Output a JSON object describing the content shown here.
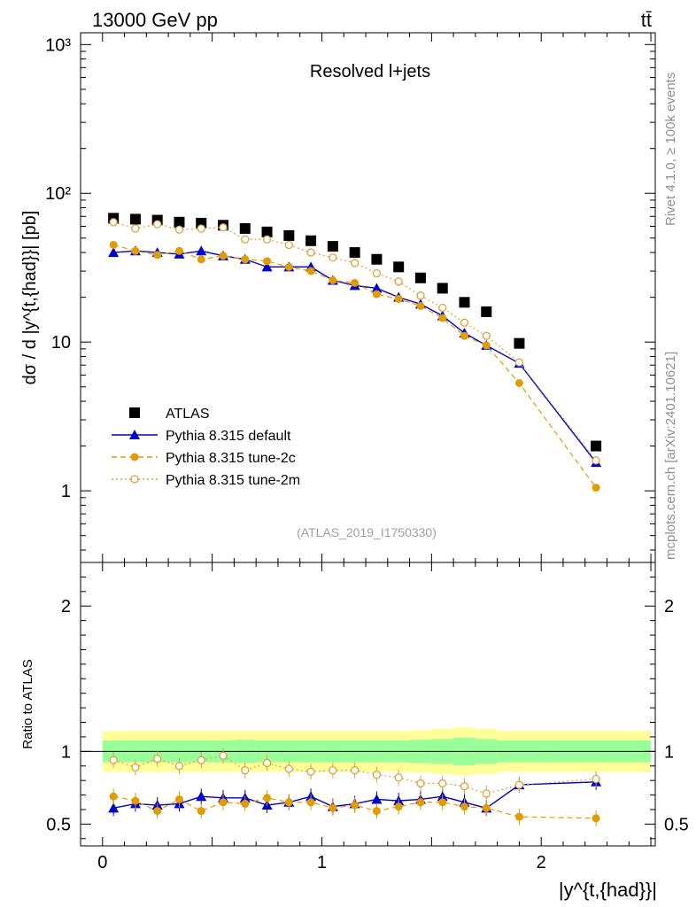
{
  "header": {
    "energy_label": "13000 GeV pp",
    "process_label": "tt̄"
  },
  "side_labels": {
    "rivet": "Rivet 4.1.0, ≥ 100k events",
    "mcplots": "mcplots.cern.ch [arXiv:2401.10621]"
  },
  "colors": {
    "atlas": "#000000",
    "default": "#0000cc",
    "tune2c": "#e09c00",
    "tune2m": "#e0a040",
    "band_inner": "#99ff99",
    "band_outer": "#ffff99"
  },
  "chart_data": [
    {
      "type": "scatter",
      "title": "Resolved l+jets",
      "analysis_id": "(ATLAS_2019_I1750330)",
      "ylabel": "dσ / d |y^{t,{had}}| [pb]",
      "yscale": "log",
      "ylim": [
        0.33,
        1200
      ],
      "xlim": [
        -0.1,
        2.52
      ],
      "y_tick_labels": [
        "1",
        "10",
        "10²",
        "10³"
      ],
      "legend_position": "lower-left",
      "x": [
        0.05,
        0.15,
        0.25,
        0.35,
        0.45,
        0.55,
        0.65,
        0.75,
        0.85,
        0.95,
        1.05,
        1.15,
        1.25,
        1.35,
        1.45,
        1.55,
        1.65,
        1.75,
        1.9,
        2.25
      ],
      "series": [
        {
          "name": "ATLAS",
          "style": "square",
          "values": [
            68,
            67,
            66,
            64,
            63,
            61,
            58,
            55,
            52,
            48,
            44,
            40,
            36,
            32,
            27,
            23,
            18.5,
            16,
            9.8,
            2.0
          ]
        },
        {
          "name": "Pythia 8.315 default",
          "style": "line-triangle",
          "values": [
            40,
            41,
            40,
            39,
            41,
            38,
            36,
            32,
            32,
            32,
            26,
            24,
            23,
            20,
            18,
            15,
            11.5,
            9.5,
            7.2,
            1.55
          ]
        },
        {
          "name": "Pythia 8.315 tune-2c",
          "style": "dashed-circle",
          "values": [
            45,
            41,
            38.5,
            41,
            36,
            38,
            36,
            35,
            32,
            30,
            26,
            25,
            21,
            19.5,
            17.5,
            14.5,
            11,
            9.5,
            5.3,
            1.05
          ]
        },
        {
          "name": "Pythia 8.315 tune-2m",
          "style": "dotted-open-circle",
          "values": [
            64,
            58,
            62,
            57,
            58,
            59,
            49,
            49,
            45,
            40,
            37,
            34,
            29,
            25.5,
            20.5,
            17,
            13.5,
            11,
            7.3,
            1.6
          ]
        }
      ]
    },
    {
      "type": "scatter",
      "ylabel": "Ratio to ATLAS",
      "xlabel": "|y^{t,{had}}|",
      "ylim": [
        0.35,
        2.3
      ],
      "xlim": [
        -0.1,
        2.52
      ],
      "x_tick_labels": [
        "0",
        "1",
        "2"
      ],
      "y_tick_labels": [
        "0.5",
        "1",
        "2"
      ],
      "reference_line": 1.0,
      "band_edges": [
        0.0,
        0.1,
        0.2,
        0.3,
        0.4,
        0.5,
        0.6,
        0.7,
        0.8,
        0.9,
        1.0,
        1.1,
        1.2,
        1.3,
        1.4,
        1.5,
        1.6,
        1.7,
        1.8,
        2.0,
        2.5
      ],
      "band_inner": [
        0.075,
        0.075,
        0.075,
        0.075,
        0.075,
        0.075,
        0.08,
        0.075,
        0.075,
        0.075,
        0.075,
        0.075,
        0.075,
        0.075,
        0.08,
        0.085,
        0.095,
        0.085,
        0.075,
        0.075
      ],
      "band_outer": [
        0.14,
        0.14,
        0.14,
        0.14,
        0.14,
        0.14,
        0.14,
        0.14,
        0.14,
        0.14,
        0.14,
        0.14,
        0.14,
        0.14,
        0.145,
        0.155,
        0.165,
        0.155,
        0.14,
        0.14
      ],
      "x": [
        0.05,
        0.15,
        0.25,
        0.35,
        0.45,
        0.55,
        0.65,
        0.75,
        0.85,
        0.95,
        1.05,
        1.15,
        1.25,
        1.35,
        1.45,
        1.55,
        1.65,
        1.75,
        1.9,
        2.25
      ],
      "series": [
        {
          "name": "Pythia 8.315 default",
          "style": "line-triangle",
          "values": [
            0.61,
            0.64,
            0.63,
            0.64,
            0.69,
            0.68,
            0.68,
            0.63,
            0.65,
            0.69,
            0.62,
            0.64,
            0.67,
            0.66,
            0.67,
            0.69,
            0.65,
            0.61,
            0.77,
            0.79
          ]
        },
        {
          "name": "Pythia 8.315 tune-2c",
          "style": "dashed-circle",
          "values": [
            0.69,
            0.66,
            0.59,
            0.67,
            0.59,
            0.65,
            0.64,
            0.68,
            0.65,
            0.65,
            0.61,
            0.63,
            0.59,
            0.62,
            0.65,
            0.65,
            0.62,
            0.61,
            0.55,
            0.54
          ]
        },
        {
          "name": "Pythia 8.315 tune-2m",
          "style": "dotted-open-circle",
          "values": [
            0.94,
            0.89,
            0.95,
            0.9,
            0.94,
            0.97,
            0.87,
            0.92,
            0.88,
            0.86,
            0.87,
            0.87,
            0.84,
            0.82,
            0.78,
            0.78,
            0.76,
            0.71,
            0.77,
            0.81
          ]
        }
      ]
    }
  ]
}
